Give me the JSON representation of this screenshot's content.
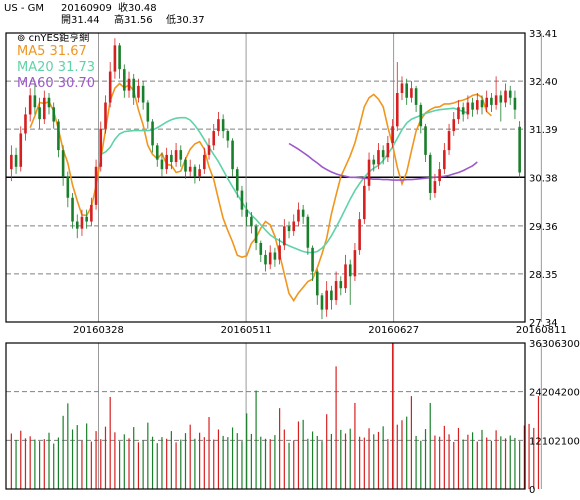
{
  "header": {
    "symbol": "US - GM",
    "date": "20160909",
    "close": "收30.48",
    "open": "開31.44",
    "high": "高31.56",
    "low": "低30.37"
  },
  "brand": "cnYES鉅亨網",
  "legend": [
    {
      "label": "MA5",
      "value": "31.67",
      "color": "#f0961e"
    },
    {
      "label": "MA20",
      "value": "31.73",
      "color": "#5fd3a8"
    },
    {
      "label": "MA60",
      "value": "30.70",
      "color": "#9b59c9"
    }
  ],
  "colors": {
    "up": "#d62020",
    "down": "#1a7f2a",
    "frame": "#000000",
    "grid": "#808080"
  },
  "chart_data": [
    {
      "type": "candlestick",
      "ylim": [
        27.34,
        33.41
      ],
      "y_ticks": [
        "33.41",
        "32.40",
        "31.39",
        "30.38",
        "29.36",
        "28.35",
        "27.34"
      ],
      "x_ticks": [
        "20160328",
        "20160511",
        "20160627",
        "20160811"
      ],
      "reference_line": 30.38,
      "candles": [
        {
          "o": 30.55,
          "c": 30.85,
          "h": 31.05,
          "l": 30.3
        },
        {
          "o": 30.85,
          "c": 30.6,
          "h": 31.0,
          "l": 30.45
        },
        {
          "o": 30.6,
          "c": 31.3,
          "h": 31.45,
          "l": 30.5
        },
        {
          "o": 31.3,
          "c": 31.7,
          "h": 31.85,
          "l": 31.15
        },
        {
          "o": 31.7,
          "c": 32.1,
          "h": 32.25,
          "l": 31.55
        },
        {
          "o": 32.1,
          "c": 31.85,
          "h": 32.4,
          "l": 31.7
        },
        {
          "o": 31.85,
          "c": 31.6,
          "h": 32.05,
          "l": 31.4
        },
        {
          "o": 31.6,
          "c": 32.05,
          "h": 32.2,
          "l": 31.5
        },
        {
          "o": 32.05,
          "c": 31.85,
          "h": 32.15,
          "l": 31.7
        },
        {
          "o": 31.85,
          "c": 31.55,
          "h": 31.95,
          "l": 31.4
        },
        {
          "o": 31.55,
          "c": 30.95,
          "h": 31.6,
          "l": 30.8
        },
        {
          "o": 30.95,
          "c": 30.4,
          "h": 31.05,
          "l": 30.2
        },
        {
          "o": 30.4,
          "c": 29.95,
          "h": 30.5,
          "l": 29.75
        },
        {
          "o": 29.95,
          "c": 29.45,
          "h": 30.05,
          "l": 29.3
        },
        {
          "o": 29.45,
          "c": 29.3,
          "h": 29.6,
          "l": 29.1
        },
        {
          "o": 29.3,
          "c": 29.55,
          "h": 29.7,
          "l": 29.15
        },
        {
          "o": 29.55,
          "c": 29.45,
          "h": 29.7,
          "l": 29.3
        },
        {
          "o": 29.45,
          "c": 29.8,
          "h": 29.95,
          "l": 29.35
        },
        {
          "o": 29.8,
          "c": 30.6,
          "h": 30.75,
          "l": 29.7
        },
        {
          "o": 30.6,
          "c": 31.4,
          "h": 31.55,
          "l": 30.5
        },
        {
          "o": 31.4,
          "c": 31.95,
          "h": 32.1,
          "l": 31.3
        },
        {
          "o": 31.95,
          "c": 32.6,
          "h": 32.8,
          "l": 31.85
        },
        {
          "o": 32.6,
          "c": 33.15,
          "h": 33.3,
          "l": 32.45
        },
        {
          "o": 33.15,
          "c": 32.65,
          "h": 33.2,
          "l": 32.45
        },
        {
          "o": 32.65,
          "c": 32.2,
          "h": 32.75,
          "l": 32.05
        },
        {
          "o": 32.2,
          "c": 32.45,
          "h": 32.6,
          "l": 32.05
        },
        {
          "o": 32.45,
          "c": 32.05,
          "h": 32.55,
          "l": 31.9
        },
        {
          "o": 32.05,
          "c": 32.3,
          "h": 32.45,
          "l": 31.95
        },
        {
          "o": 32.3,
          "c": 31.95,
          "h": 32.4,
          "l": 31.8
        },
        {
          "o": 31.95,
          "c": 31.55,
          "h": 32.0,
          "l": 31.4
        },
        {
          "o": 31.55,
          "c": 31.05,
          "h": 31.6,
          "l": 30.9
        },
        {
          "o": 31.05,
          "c": 30.75,
          "h": 31.1,
          "l": 30.6
        },
        {
          "o": 30.75,
          "c": 30.55,
          "h": 30.9,
          "l": 30.4
        },
        {
          "o": 30.55,
          "c": 30.85,
          "h": 31.0,
          "l": 30.45
        },
        {
          "o": 30.85,
          "c": 30.7,
          "h": 30.95,
          "l": 30.55
        },
        {
          "o": 30.7,
          "c": 30.95,
          "h": 31.1,
          "l": 30.6
        },
        {
          "o": 30.95,
          "c": 30.75,
          "h": 31.05,
          "l": 30.6
        },
        {
          "o": 30.75,
          "c": 30.5,
          "h": 30.8,
          "l": 30.35
        },
        {
          "o": 30.5,
          "c": 30.6,
          "h": 30.75,
          "l": 30.4
        },
        {
          "o": 30.6,
          "c": 30.4,
          "h": 30.65,
          "l": 30.25
        },
        {
          "o": 30.4,
          "c": 30.55,
          "h": 30.65,
          "l": 30.3
        },
        {
          "o": 30.55,
          "c": 30.85,
          "h": 31.0,
          "l": 30.45
        },
        {
          "o": 30.85,
          "c": 31.05,
          "h": 31.2,
          "l": 30.75
        },
        {
          "o": 31.05,
          "c": 31.35,
          "h": 31.5,
          "l": 30.95
        },
        {
          "o": 31.35,
          "c": 31.6,
          "h": 31.75,
          "l": 31.25
        },
        {
          "o": 31.6,
          "c": 31.35,
          "h": 31.7,
          "l": 31.2
        },
        {
          "o": 31.35,
          "c": 31.15,
          "h": 31.4,
          "l": 31.0
        },
        {
          "o": 31.15,
          "c": 30.55,
          "h": 31.2,
          "l": 30.4
        },
        {
          "o": 30.55,
          "c": 30.1,
          "h": 30.6,
          "l": 29.95
        },
        {
          "o": 30.1,
          "c": 29.7,
          "h": 30.2,
          "l": 29.55
        },
        {
          "o": 29.7,
          "c": 29.55,
          "h": 29.85,
          "l": 29.35
        },
        {
          "o": 29.55,
          "c": 29.35,
          "h": 29.65,
          "l": 29.2
        },
        {
          "o": 29.35,
          "c": 29.0,
          "h": 29.4,
          "l": 28.85
        },
        {
          "o": 29.0,
          "c": 28.75,
          "h": 29.05,
          "l": 28.6
        },
        {
          "o": 28.75,
          "c": 28.55,
          "h": 28.85,
          "l": 28.4
        },
        {
          "o": 28.55,
          "c": 28.8,
          "h": 28.95,
          "l": 28.45
        },
        {
          "o": 28.8,
          "c": 28.65,
          "h": 28.9,
          "l": 28.5
        },
        {
          "o": 28.65,
          "c": 28.95,
          "h": 29.1,
          "l": 28.55
        },
        {
          "o": 28.95,
          "c": 29.35,
          "h": 29.5,
          "l": 28.85
        },
        {
          "o": 29.35,
          "c": 29.25,
          "h": 29.45,
          "l": 29.1
        },
        {
          "o": 29.25,
          "c": 29.45,
          "h": 29.6,
          "l": 29.15
        },
        {
          "o": 29.45,
          "c": 29.7,
          "h": 29.85,
          "l": 29.35
        },
        {
          "o": 29.7,
          "c": 29.55,
          "h": 29.8,
          "l": 29.4
        },
        {
          "o": 29.55,
          "c": 28.9,
          "h": 29.6,
          "l": 28.75
        },
        {
          "o": 28.9,
          "c": 28.4,
          "h": 28.95,
          "l": 28.2
        },
        {
          "o": 28.4,
          "c": 27.9,
          "h": 28.45,
          "l": 27.7
        },
        {
          "o": 27.9,
          "c": 27.6,
          "h": 27.95,
          "l": 27.4
        },
        {
          "o": 27.6,
          "c": 28.0,
          "h": 28.2,
          "l": 27.45
        },
        {
          "o": 28.0,
          "c": 27.8,
          "h": 28.1,
          "l": 27.6
        },
        {
          "o": 27.8,
          "c": 28.2,
          "h": 28.4,
          "l": 27.7
        },
        {
          "o": 28.2,
          "c": 28.05,
          "h": 28.3,
          "l": 27.9
        },
        {
          "o": 28.05,
          "c": 28.55,
          "h": 28.75,
          "l": 27.95
        },
        {
          "o": 28.55,
          "c": 28.3,
          "h": 28.65,
          "l": 27.7
        },
        {
          "o": 28.3,
          "c": 28.85,
          "h": 29.0,
          "l": 28.2
        },
        {
          "o": 28.85,
          "c": 29.5,
          "h": 29.65,
          "l": 28.75
        },
        {
          "o": 29.5,
          "c": 30.2,
          "h": 30.35,
          "l": 29.4
        },
        {
          "o": 30.2,
          "c": 30.75,
          "h": 30.9,
          "l": 30.1
        },
        {
          "o": 30.75,
          "c": 30.65,
          "h": 30.85,
          "l": 30.5
        },
        {
          "o": 30.65,
          "c": 30.95,
          "h": 31.1,
          "l": 30.55
        },
        {
          "o": 30.95,
          "c": 30.8,
          "h": 31.05,
          "l": 30.65
        },
        {
          "o": 30.8,
          "c": 31.1,
          "h": 31.25,
          "l": 30.7
        },
        {
          "o": 31.1,
          "c": 31.45,
          "h": 31.6,
          "l": 31.0
        },
        {
          "o": 31.45,
          "c": 32.15,
          "h": 32.8,
          "l": 31.35
        },
        {
          "o": 32.15,
          "c": 32.35,
          "h": 32.5,
          "l": 32.0
        },
        {
          "o": 32.35,
          "c": 32.05,
          "h": 32.45,
          "l": 31.9
        },
        {
          "o": 32.05,
          "c": 32.25,
          "h": 32.4,
          "l": 31.95
        },
        {
          "o": 32.25,
          "c": 31.9,
          "h": 32.3,
          "l": 31.75
        },
        {
          "o": 31.9,
          "c": 31.45,
          "h": 31.95,
          "l": 31.3
        },
        {
          "o": 31.45,
          "c": 30.85,
          "h": 31.5,
          "l": 30.7
        },
        {
          "o": 30.85,
          "c": 30.05,
          "h": 30.9,
          "l": 29.9
        },
        {
          "o": 30.05,
          "c": 30.3,
          "h": 30.45,
          "l": 29.95
        },
        {
          "o": 30.3,
          "c": 30.55,
          "h": 30.7,
          "l": 30.2
        },
        {
          "o": 30.55,
          "c": 30.95,
          "h": 31.1,
          "l": 30.45
        },
        {
          "o": 30.95,
          "c": 31.35,
          "h": 31.5,
          "l": 30.85
        },
        {
          "o": 31.35,
          "c": 31.6,
          "h": 31.75,
          "l": 31.25
        },
        {
          "o": 31.6,
          "c": 31.85,
          "h": 32.0,
          "l": 31.5
        },
        {
          "o": 31.85,
          "c": 31.7,
          "h": 31.95,
          "l": 31.55
        },
        {
          "o": 31.7,
          "c": 31.95,
          "h": 32.1,
          "l": 31.6
        },
        {
          "o": 31.95,
          "c": 31.8,
          "h": 32.05,
          "l": 31.65
        },
        {
          "o": 31.8,
          "c": 32.0,
          "h": 32.15,
          "l": 31.7
        },
        {
          "o": 32.0,
          "c": 31.85,
          "h": 32.1,
          "l": 31.7
        },
        {
          "o": 31.85,
          "c": 32.05,
          "h": 32.2,
          "l": 31.75
        },
        {
          "o": 32.05,
          "c": 31.9,
          "h": 32.15,
          "l": 31.75
        },
        {
          "o": 31.9,
          "c": 32.1,
          "h": 32.5,
          "l": 31.8
        },
        {
          "o": 32.1,
          "c": 31.95,
          "h": 32.2,
          "l": 31.55
        },
        {
          "o": 31.95,
          "c": 32.2,
          "h": 32.35,
          "l": 31.85
        },
        {
          "o": 32.2,
          "c": 32.05,
          "h": 32.3,
          "l": 31.9
        },
        {
          "o": 32.05,
          "c": 31.8,
          "h": 32.2,
          "l": 31.6
        },
        {
          "o": 31.44,
          "c": 30.48,
          "h": 31.56,
          "l": 30.37
        }
      ],
      "ma": [
        {
          "name": "MA5",
          "from_index": 4,
          "values": [
            31.42,
            31.67,
            31.95,
            31.93,
            31.97,
            31.77,
            31.39,
            30.96,
            30.68,
            30.22,
            29.89,
            29.59,
            29.58,
            29.76,
            30.2,
            30.77,
            31.37,
            31.99,
            32.25,
            32.35,
            32.26,
            32.32,
            32.2,
            31.8,
            31.48,
            31.05,
            30.86,
            30.77,
            30.88,
            30.65,
            30.63,
            30.48,
            30.51,
            30.76,
            30.97,
            31.08,
            31.13,
            30.97,
            30.6,
            30.34,
            29.92,
            29.52,
            29.26,
            29.02,
            28.74,
            28.7,
            28.73,
            28.99,
            29.11,
            29.31,
            29.45,
            29.38,
            29.14,
            28.76,
            28.35,
            27.94,
            27.79,
            27.95,
            28.07,
            28.19,
            28.24,
            28.48,
            28.77,
            29.1,
            29.61,
            30.01,
            30.39,
            30.61,
            30.83,
            31.1,
            31.47,
            31.86,
            32.05,
            32.12,
            32.02,
            31.86,
            31.43,
            31.06,
            30.59,
            30.24,
            30.49,
            30.93,
            31.35,
            31.59,
            31.73,
            31.8,
            31.85,
            31.86,
            31.92,
            31.92,
            31.94,
            31.98,
            32.0,
            32.04,
            32.1,
            32.12,
            32.06,
            31.76,
            31.67
          ]
        },
        {
          "name": "MA20",
          "from_index": 19,
          "values": [
            30.86,
            30.91,
            31.01,
            31.18,
            31.29,
            31.34,
            31.35,
            31.36,
            31.36,
            31.36,
            31.36,
            31.37,
            31.42,
            31.48,
            31.54,
            31.59,
            31.62,
            31.63,
            31.63,
            31.58,
            31.47,
            31.33,
            31.17,
            31.01,
            30.86,
            30.71,
            30.53,
            30.35,
            30.18,
            30.02,
            29.86,
            29.7,
            29.59,
            29.49,
            29.38,
            29.27,
            29.17,
            29.1,
            29.05,
            28.99,
            28.94,
            28.9,
            28.86,
            28.82,
            28.8,
            28.8,
            28.82,
            28.89,
            29.0,
            29.15,
            29.33,
            29.52,
            29.72,
            29.92,
            30.1,
            30.25,
            30.38,
            30.49,
            30.57,
            30.63,
            30.73,
            30.87,
            31.02,
            31.2,
            31.38,
            31.52,
            31.6,
            31.64,
            31.68,
            31.72,
            31.75,
            31.78,
            31.8,
            31.81,
            31.82,
            31.83,
            31.8,
            31.76,
            31.73
          ]
        },
        {
          "name": "MA60",
          "from_index": 59,
          "values": [
            31.09,
            31.03,
            30.97,
            30.9,
            30.83,
            30.75,
            30.68,
            30.6,
            30.54,
            30.49,
            30.45,
            30.42,
            30.4,
            30.38,
            30.38,
            30.37,
            30.36,
            30.35,
            30.34,
            30.34,
            30.33,
            30.33,
            30.32,
            30.32,
            30.32,
            30.33,
            30.33,
            30.34,
            30.35,
            30.36,
            30.37,
            30.38,
            30.39,
            30.4,
            30.42,
            30.45,
            30.48,
            30.52,
            30.57,
            30.62,
            30.7
          ]
        }
      ]
    },
    {
      "type": "bar",
      "ylim": [
        0,
        36306300
      ],
      "y_ticks": [
        "36306300",
        "24204200",
        "12102100",
        "0"
      ],
      "values": [
        13800000,
        12200000,
        14500000,
        12600000,
        13100000,
        12300000,
        11900000,
        12400000,
        14000000,
        11300000,
        12800000,
        18200000,
        21300000,
        14800000,
        15900000,
        12000000,
        16300000,
        11800000,
        14400000,
        12400000,
        15500000,
        22900000,
        14100000,
        11900000,
        13600000,
        12600000,
        15400000,
        11600000,
        12100000,
        16500000,
        13000000,
        11400000,
        12900000,
        12500000,
        14400000,
        11600000,
        12300000,
        13900000,
        16000000,
        12500000,
        14000000,
        12900000,
        17900000,
        12300000,
        14800000,
        13200000,
        12900000,
        15300000,
        13900000,
        11900000,
        18800000,
        13700000,
        24500000,
        13000000,
        12500000,
        12400000,
        13400000,
        20100000,
        14800000,
        11500000,
        12100000,
        16800000,
        17200000,
        12500000,
        14300000,
        13200000,
        11900000,
        18600000,
        13700000,
        30500000,
        14700000,
        13800000,
        15000000,
        21400000,
        13000000,
        12800000,
        15100000,
        13600000,
        14200000,
        15600000,
        12400000,
        36200000,
        16000000,
        17100000,
        18000000,
        23100000,
        13200000,
        12000000,
        14900000,
        21400000,
        13300000,
        13000000,
        15700000,
        13600000,
        11700000,
        15200000,
        12300000,
        13500000,
        14100000,
        11800000,
        14700000,
        12800000,
        12000000,
        14600000,
        13100000,
        12600000,
        13300000,
        12700000,
        11900000,
        15800000,
        16200000,
        15200000,
        23100000
      ]
    }
  ]
}
